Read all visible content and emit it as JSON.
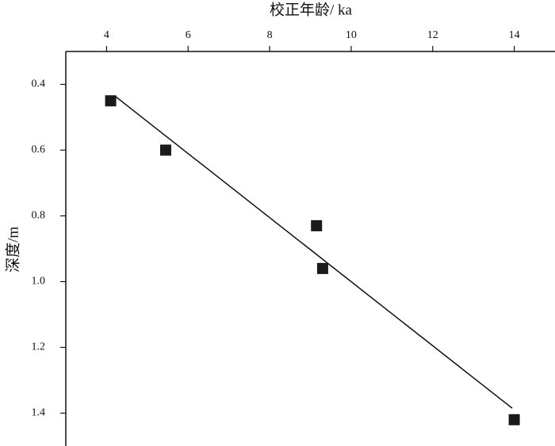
{
  "chart_data": {
    "type": "scatter",
    "x_label": "校正年龄/ ka",
    "y_label": "深度/m",
    "x_axis_position": "top",
    "xlim": [
      3,
      15
    ],
    "xticks": [
      4,
      6,
      8,
      10,
      12,
      14
    ],
    "ylim": [
      1.5,
      0.3
    ],
    "yticks": [
      0.4,
      0.6,
      0.8,
      {
        "value": 1,
        "label": "1.0"
      },
      1.2,
      1.4
    ],
    "series": [
      {
        "type": "scatter",
        "color": "#1a1a1a",
        "x": [
          4.1,
          5.45,
          9.15,
          9.3,
          14.0
        ],
        "values": [
          0.45,
          0.6,
          0.83,
          0.96,
          1.42
        ]
      },
      {
        "type": "line",
        "color": "#111111",
        "x": [
          4.2,
          13.95
        ],
        "values": [
          0.435,
          1.385
        ]
      }
    ]
  }
}
